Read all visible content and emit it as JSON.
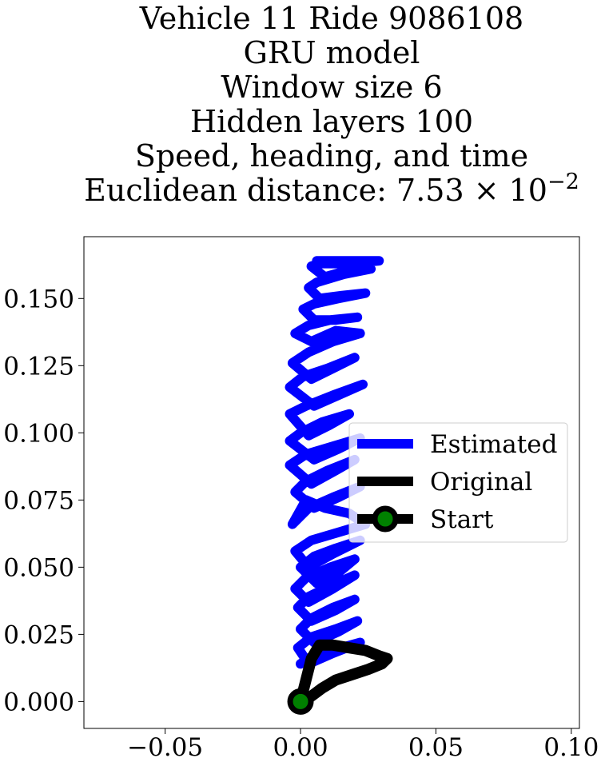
{
  "chart_data": {
    "type": "line",
    "title_lines": [
      "Vehicle 11 Ride 9086108",
      "GRU model",
      "Window size 6",
      "Hidden layers 100",
      "Speed, heading, and time"
    ],
    "title_metric": {
      "prefix": "Euclidean distance: ",
      "mantissa": "7.53",
      "times": "×",
      "base": "10",
      "exponent": "−2"
    },
    "xlabel": "",
    "ylabel": "",
    "xlim": [
      -0.08,
      0.103
    ],
    "ylim": [
      -0.01,
      0.173
    ],
    "x_ticks": [
      -0.05,
      0.0,
      0.05,
      0.1
    ],
    "x_tick_labels": [
      "−0.05",
      "0.00",
      "0.05",
      "0.10"
    ],
    "y_ticks": [
      0.0,
      0.025,
      0.05,
      0.075,
      0.1,
      0.125,
      0.15
    ],
    "y_tick_labels": [
      "0.000",
      "0.025",
      "0.050",
      "0.075",
      "0.100",
      "0.125",
      "0.150"
    ],
    "grid": false,
    "legend_position": "center-right",
    "legend": [
      "Estimated",
      "Original",
      "Start"
    ],
    "colors": {
      "estimated": "#0000ff",
      "original": "#000000",
      "start_marker": "#008000"
    },
    "series": [
      {
        "name": "Estimated",
        "color": "#0000ff",
        "x": [
          0.0,
          0.006,
          0.015,
          0.022,
          0.012,
          0.003,
          -0.001,
          0.004,
          0.013,
          0.021,
          0.014,
          0.005,
          0.0,
          0.004,
          0.012,
          0.02,
          0.013,
          0.004,
          -0.001,
          0.003,
          0.011,
          0.02,
          0.012,
          0.003,
          -0.002,
          0.002,
          0.011,
          0.02,
          0.014,
          0.006,
          0.0,
          0.005,
          0.013,
          0.022,
          0.012,
          0.003,
          -0.002,
          0.004,
          0.014,
          0.024,
          0.018,
          0.009,
          0.002,
          -0.003,
          0.003,
          0.012,
          0.022,
          0.014,
          0.005,
          -0.002,
          0.002,
          0.01,
          0.02,
          0.013,
          0.004,
          -0.004,
          0.002,
          0.012,
          0.022,
          0.014,
          0.005,
          -0.004,
          0.0,
          0.008,
          0.018,
          0.011,
          0.003,
          -0.004,
          0.002,
          0.012,
          0.023,
          0.014,
          0.005,
          -0.004,
          0.001,
          0.01,
          0.02,
          0.012,
          0.004,
          -0.003,
          0.003,
          0.012,
          0.022,
          0.013,
          0.004,
          -0.002,
          0.003,
          0.011,
          0.021,
          0.013,
          0.005,
          0.001,
          0.005,
          0.014,
          0.024,
          0.015,
          0.007,
          0.003,
          0.006,
          0.016,
          0.026,
          0.016,
          0.009,
          0.004,
          0.007,
          0.018,
          0.029,
          0.02,
          0.011,
          0.006
        ],
        "y": [
          0.014,
          0.018,
          0.02,
          0.022,
          0.018,
          0.014,
          0.02,
          0.024,
          0.027,
          0.03,
          0.026,
          0.022,
          0.027,
          0.031,
          0.035,
          0.038,
          0.034,
          0.03,
          0.035,
          0.039,
          0.043,
          0.047,
          0.042,
          0.037,
          0.042,
          0.046,
          0.05,
          0.053,
          0.048,
          0.044,
          0.05,
          0.054,
          0.057,
          0.06,
          0.055,
          0.05,
          0.056,
          0.06,
          0.063,
          0.066,
          0.07,
          0.072,
          0.075,
          0.066,
          0.072,
          0.076,
          0.08,
          0.076,
          0.072,
          0.078,
          0.082,
          0.086,
          0.09,
          0.086,
          0.081,
          0.088,
          0.092,
          0.095,
          0.098,
          0.094,
          0.09,
          0.097,
          0.1,
          0.104,
          0.107,
          0.103,
          0.099,
          0.107,
          0.11,
          0.114,
          0.118,
          0.114,
          0.11,
          0.117,
          0.121,
          0.124,
          0.128,
          0.124,
          0.12,
          0.126,
          0.13,
          0.134,
          0.137,
          0.138,
          0.134,
          0.137,
          0.14,
          0.142,
          0.143,
          0.142,
          0.142,
          0.146,
          0.148,
          0.15,
          0.152,
          0.151,
          0.15,
          0.154,
          0.156,
          0.159,
          0.161,
          0.16,
          0.158,
          0.162,
          0.163,
          0.163,
          0.164,
          0.164,
          0.164,
          0.164
        ]
      },
      {
        "name": "Original",
        "color": "#000000",
        "x": [
          0.0,
          0.002,
          0.004,
          0.007,
          0.012,
          0.018,
          0.024,
          0.029,
          0.032,
          0.03,
          0.025,
          0.019,
          0.013,
          0.008,
          0.004,
          0.0
        ],
        "y": [
          0.0,
          0.008,
          0.016,
          0.021,
          0.021,
          0.02,
          0.019,
          0.017,
          0.016,
          0.014,
          0.012,
          0.01,
          0.008,
          0.005,
          0.002,
          0.0
        ]
      }
    ],
    "start_point": {
      "name": "Start",
      "x": 0.0,
      "y": 0.0
    }
  }
}
